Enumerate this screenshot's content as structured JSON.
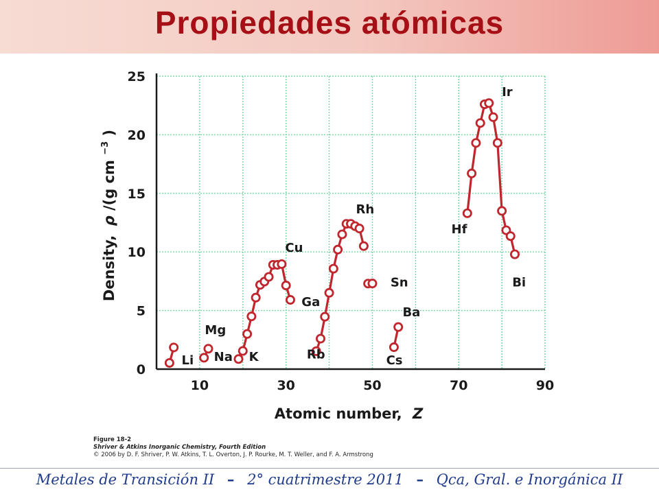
{
  "slide": {
    "title": "Propiedades atómicas"
  },
  "chart_data": {
    "type": "line",
    "xlabel_text": "Atomic number,",
    "xlabel_symbol": "Z",
    "ylabel_text": "Density,",
    "ylabel_symbol": "ρ",
    "ylabel_unit": "/(g cm",
    "ylabel_exp": "−3",
    "ylabel_close": ")",
    "xlim": [
      0,
      90
    ],
    "ylim": [
      0,
      25
    ],
    "x_ticks": [
      10,
      30,
      50,
      70,
      90
    ],
    "y_ticks": [
      0,
      5,
      10,
      15,
      20,
      25
    ],
    "grid": true,
    "colors": {
      "series": "#c0262d",
      "grid": "#7fd3a6",
      "axis": "#1a1a1a"
    },
    "series": [
      {
        "x": [
          3,
          4
        ],
        "y": [
          0.53,
          1.85
        ]
      },
      {
        "x": [
          11,
          12
        ],
        "y": [
          0.97,
          1.74
        ]
      },
      {
        "x": [
          19,
          20,
          21,
          22,
          23,
          24,
          25,
          26,
          27,
          28,
          29,
          30,
          31
        ],
        "y": [
          0.86,
          1.55,
          3.0,
          4.5,
          6.1,
          7.19,
          7.47,
          7.87,
          8.9,
          8.9,
          8.96,
          7.14,
          5.91
        ]
      },
      {
        "x": [
          37,
          38,
          39,
          40,
          41,
          42,
          43,
          44,
          45,
          46,
          47,
          48
        ],
        "y": [
          1.53,
          2.6,
          4.47,
          6.51,
          8.57,
          10.2,
          11.5,
          12.4,
          12.4,
          12.2,
          12.0,
          10.5
        ]
      },
      {
        "x": [
          49,
          50
        ],
        "y": [
          7.3,
          7.31
        ]
      },
      {
        "x": [
          55,
          56
        ],
        "y": [
          1.87,
          3.59
        ]
      },
      {
        "x": [
          72,
          73,
          74,
          75,
          76,
          77,
          78,
          79,
          80,
          81,
          82,
          83
        ],
        "y": [
          13.3,
          16.7,
          19.3,
          21.0,
          22.6,
          22.7,
          21.5,
          19.3,
          13.5,
          11.85,
          11.35,
          9.8
        ]
      }
    ],
    "annotations": [
      {
        "text": "Li",
        "x": 5.8,
        "y": 0.4
      },
      {
        "text": "Mg",
        "x": 11.2,
        "y": 3.0
      },
      {
        "text": "Na",
        "x": 13.3,
        "y": 0.7
      },
      {
        "text": "K",
        "x": 21.4,
        "y": 0.7
      },
      {
        "text": "Cu",
        "x": 29.8,
        "y": 10.0
      },
      {
        "text": "Ga",
        "x": 33.6,
        "y": 5.4
      },
      {
        "text": "Rb",
        "x": 34.8,
        "y": 0.9
      },
      {
        "text": "Rh",
        "x": 46.2,
        "y": 13.3
      },
      {
        "text": "Sn",
        "x": 54.2,
        "y": 7.05
      },
      {
        "text": "Cs",
        "x": 53.2,
        "y": 0.4
      },
      {
        "text": "Ba",
        "x": 57.0,
        "y": 4.5
      },
      {
        "text": "Hf",
        "x": 68.3,
        "y": 11.6
      },
      {
        "text": "Ir",
        "x": 80.0,
        "y": 23.3
      },
      {
        "text": "Bi",
        "x": 82.4,
        "y": 7.05
      }
    ]
  },
  "caption": {
    "figure": "Figure 18-2",
    "book": "Shriver & Atkins Inorganic Chemistry, Fourth Edition",
    "rights": "© 2006 by D. F. Shriver, P. W. Atkins, T. L. Overton, J. P. Rourke, M. T. Weller, and F. A. Armstrong"
  },
  "footer": {
    "part1": "Metales de Transición II",
    "sep1": "–",
    "part2": "2° cuatrimestre 2011",
    "sep2": "–",
    "part3": "Qca, Gral. e Inorgánica II"
  }
}
